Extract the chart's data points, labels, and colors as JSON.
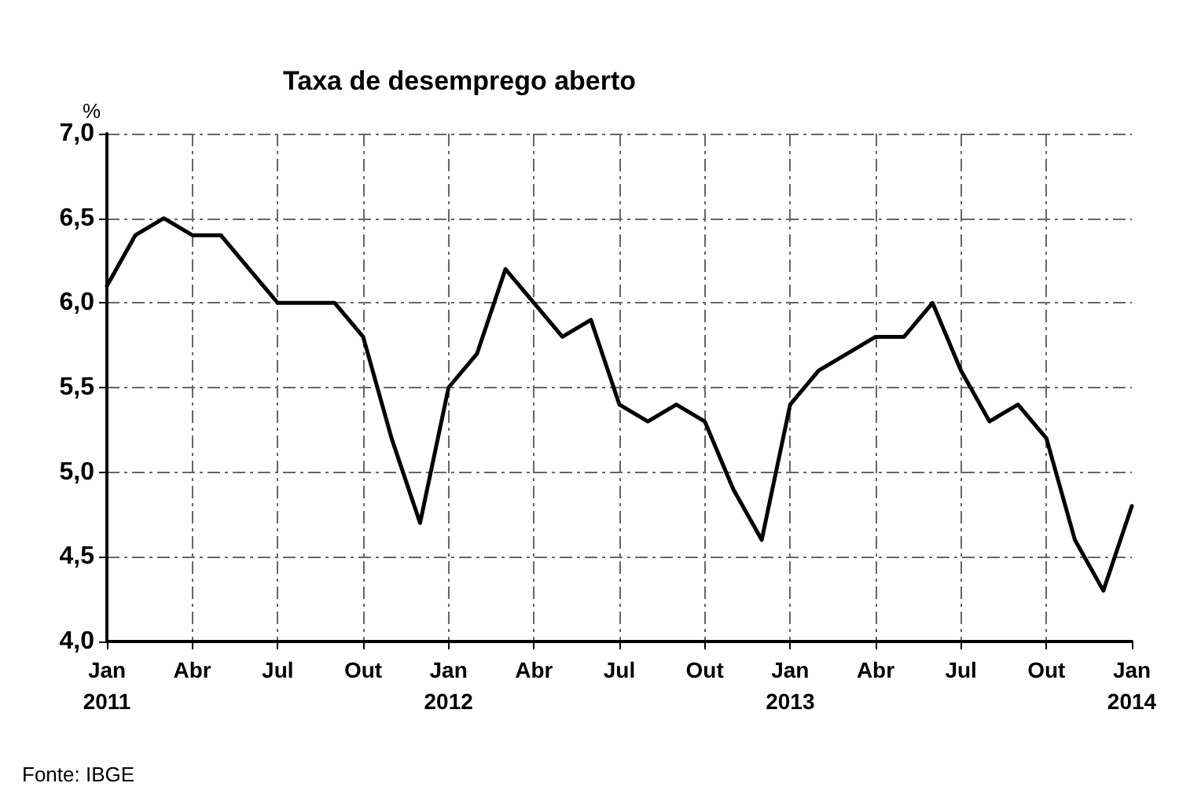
{
  "chart_data": {
    "type": "line",
    "title": "Taxa de desemprego aberto",
    "ylabel": "%",
    "annotations": [
      "Fonte: IBGE"
    ],
    "categories": [
      "Jan\n2011",
      null,
      null,
      "Abr",
      null,
      null,
      "Jul",
      null,
      null,
      "Out",
      null,
      null,
      "Jan\n2012",
      null,
      null,
      "Abr",
      null,
      null,
      "Jul",
      null,
      null,
      "Out",
      null,
      null,
      "Jan\n2013",
      null,
      null,
      "Abr",
      null,
      null,
      "Jul",
      null,
      null,
      "Out",
      null,
      null,
      "Jan\n2014"
    ],
    "series": [
      {
        "color": "#000000",
        "values": [
          6.1,
          6.4,
          6.5,
          6.4,
          6.4,
          6.2,
          6.0,
          6.0,
          6.0,
          5.8,
          5.2,
          4.7,
          5.5,
          5.7,
          6.2,
          6.0,
          5.8,
          5.9,
          5.4,
          5.3,
          5.4,
          5.3,
          4.9,
          4.6,
          5.4,
          5.6,
          5.7,
          5.8,
          5.8,
          6.0,
          5.6,
          5.3,
          5.4,
          5.2,
          4.6,
          4.3,
          4.8
        ]
      }
    ],
    "ylim": [
      4,
      7
    ],
    "yticks": [
      {
        "value": 4,
        "label": "4,0"
      },
      {
        "value": 4.5,
        "label": "4,5"
      },
      {
        "value": 5,
        "label": "5,0"
      },
      {
        "value": 5.5,
        "label": "5,5"
      },
      {
        "value": 6,
        "label": "6,0"
      },
      {
        "value": 6.5,
        "label": "6,5"
      },
      {
        "value": 7,
        "label": "7,0"
      }
    ],
    "grid": true,
    "marker": "none",
    "line_style": "solid"
  }
}
